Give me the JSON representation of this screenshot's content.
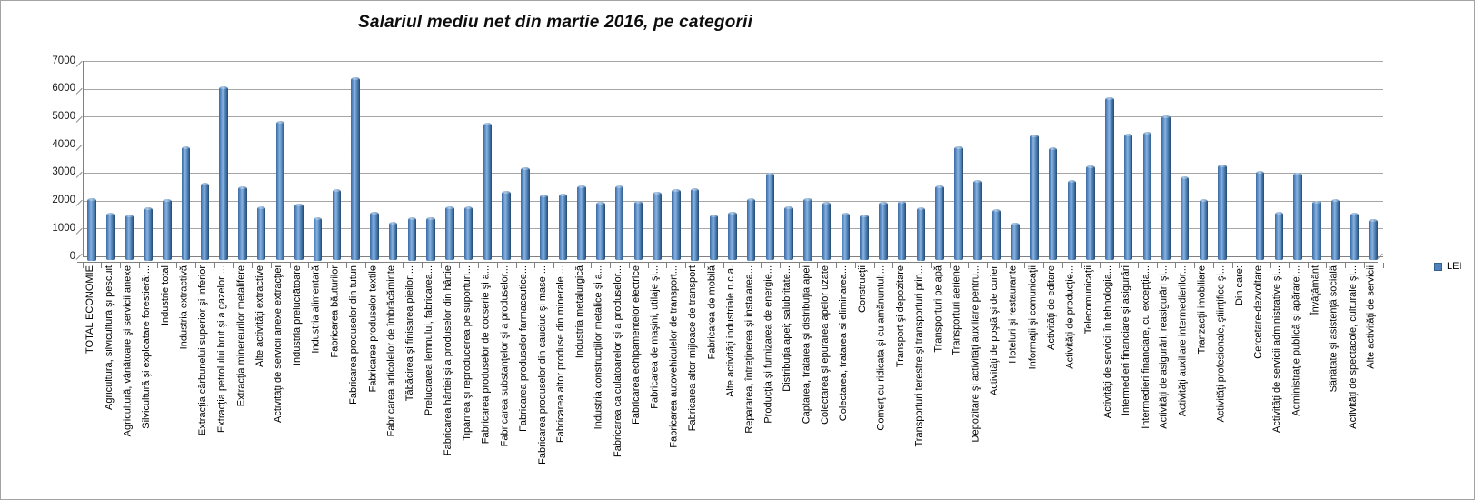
{
  "chart_data": {
    "type": "bar",
    "title": "Salariul mediu net din martie 2016, pe categorii",
    "legend": {
      "label": "LEI",
      "color": "#4F81BD",
      "position": "right"
    },
    "ylabel": "",
    "xlabel": "",
    "ylim": [
      0,
      7000
    ],
    "y_ticks": [
      0,
      1000,
      2000,
      3000,
      4000,
      5000,
      6000,
      7000
    ],
    "grid": true,
    "bar_color": "#4F81BD",
    "categories": [
      "TOTAL ECONOMIE",
      "Agricultură, silvicultură şi pescuit",
      "Agricultură, vânătoare şi servicii anexe",
      "Silvicultură şi exploatare forestieră;...",
      "Industrie total",
      "Industria extractivă",
      "Extracţia cărbunelui superior şi inferior",
      "Extracţia petrolului brut şi a gazelor ...",
      "Extracţia minereurilor metalifere",
      "Alte activităţi extractive",
      "Activităţi de servicii anexe extracţiei",
      "Industria prelucrătoare",
      "Industria alimentară",
      "Fabricarea băuturilor",
      "Fabricarea produselor din tutun",
      "Fabricarea produselor textile",
      "Fabricarea articolelor de îmbrăcăminte",
      "Tăbăcirea şi finisarea pieilor;...",
      "Prelucrarea lemnului, fabricarea...",
      "Fabricarea hârtiei şi a produselor din hârtie",
      "Tipărirea şi reproducerea pe suporturi...",
      "Fabricarea produselor de cocserie şi a...",
      "Fabricarea substanţelor şi a produselor...",
      "Fabricarea produselor farmaceutice...",
      "Fabricarea produselor din cauciuc şi mase ...",
      "Fabricarea altor produse din minerale ...",
      "Industria metalurgică",
      "Industria construcţiilor metalice şi a...",
      "Fabricarea calculatoarelor şi a produselor...",
      "Fabricarea echipamentelor electrice",
      "Fabricarea de maşini, utilaje şi...",
      "Fabricarea autovehiculelor de transport...",
      "Fabricarea altor mijloace de transport",
      "Fabricarea de mobilă",
      "Alte activităţi industriale n.c.a.",
      "Repararea, întreţinerea şi instalarea...",
      "Producţia şi furnizarea de energie...",
      "Distribuţia apei; salubritate...",
      "Captarea, tratarea şi distribuţia apei",
      "Colectarea şi epurarea apelor uzate",
      "Colectarea, tratarea si eliminarea...",
      "Construcţii",
      "Comerţ cu ridicata şi cu amănuntul;...",
      "Transport şi depozitare",
      "Transporturi terestre şi transporturi prin...",
      "Transporturi pe apă",
      "Transporturi aeriene",
      "Depozitare şi activităţi auxiliare pentru...",
      "Activităţi de poştă şi de curier",
      "Hoteluri şi restaurante",
      "Informaţii şi comunicaţii",
      "Activităţi de editare",
      "Activităţi de producţie...",
      "Telecomunicaţii",
      "Activităţi de servicii în tehnologia...",
      "Intermedieri financiare şi asigurări",
      "Intermedieri financiare, cu excepţia...",
      "Activităţi de asigurări, reasigurări şi...",
      "Activităţi auxiliare intermedierilor...",
      "Tranzacţii imobiliare",
      "Activităţi profesionale, ştiinţifice şi...",
      "Din care:",
      "Cercetare-dezvoltare",
      "Activităţi de servicii administrative şi...",
      "Administraţie publică şi apărare;...",
      "Învăţământ",
      "Sănătate şi asistenţă socială",
      "Activităţi de spectacole, culturale şi...",
      "Alte activităţi de servicii"
    ],
    "values": [
      2100,
      1550,
      1500,
      1750,
      2050,
      3950,
      2650,
      6100,
      2500,
      1800,
      4850,
      1900,
      1400,
      2400,
      6400,
      1600,
      1250,
      1400,
      1400,
      1800,
      1800,
      4800,
      2350,
      3200,
      2200,
      2250,
      2550,
      1950,
      2550,
      2000,
      2300,
      2400,
      2450,
      1500,
      1600,
      2100,
      3000,
      1800,
      2100,
      1950,
      1550,
      1500,
      1950,
      2000,
      1750,
      2550,
      3950,
      2750,
      1700,
      1200,
      4350,
      3900,
      2750,
      3250,
      5700,
      4400,
      4450,
      5050,
      2850,
      2050,
      3300,
      null,
      3050,
      1600,
      3000,
      2000,
      2050,
      1550,
      1350
    ]
  }
}
